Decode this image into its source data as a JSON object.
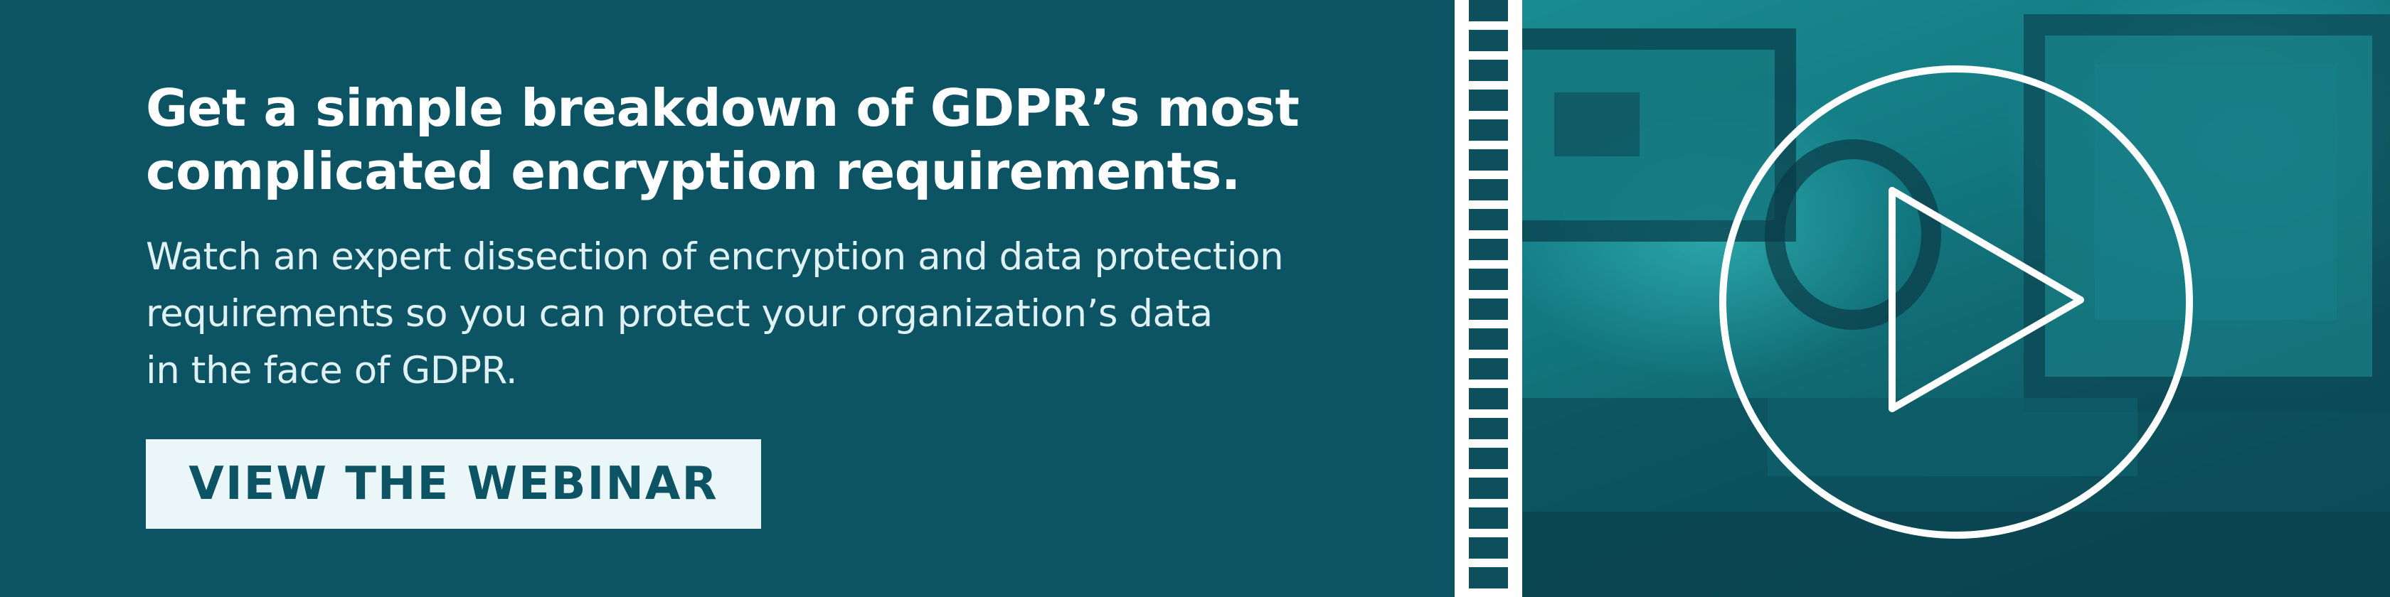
{
  "headline": {
    "line1": "Get a simple breakdown of GDPR’s most",
    "line2": "complicated encryption requirements."
  },
  "description": {
    "line1": "Watch an expert dissection of encryption and data protection",
    "line2": "requirements so you can protect your organization’s data",
    "line3": "in the face of GDPR."
  },
  "cta": {
    "label": "VIEW THE WEBINAR"
  },
  "icons": {
    "play": "play-circle-icon",
    "film": "film-strip-icon"
  },
  "colors": {
    "panel": "#0c5363",
    "photo_tint": "#1a8c92",
    "cta_bg": "#eaf6f7",
    "text": "#ffffff"
  }
}
